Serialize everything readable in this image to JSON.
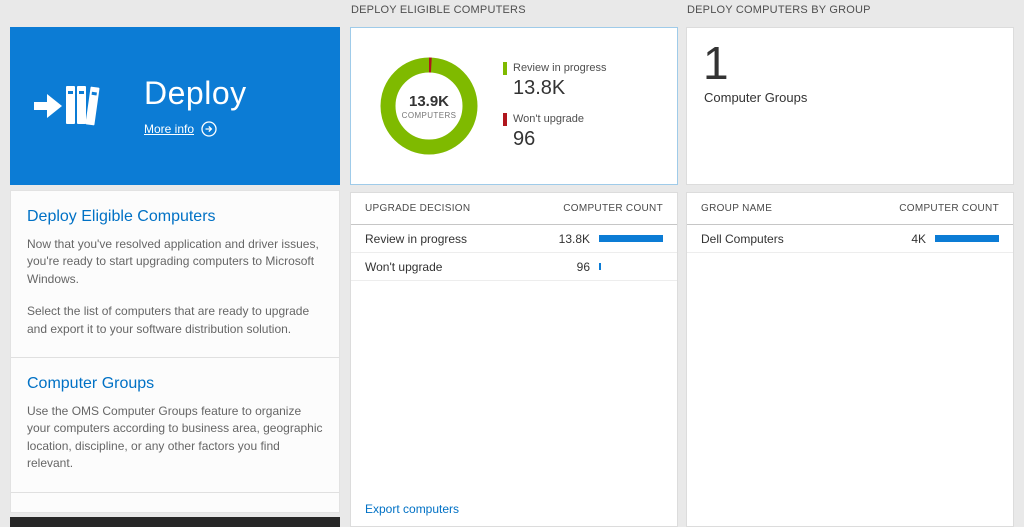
{
  "colors": {
    "tile_blue": "#0c7cd5",
    "accent_blue": "#0071c5",
    "donut_green": "#7fba00",
    "wont_upgrade_red": "#b0161d",
    "bar_blue": "#0c7cd5",
    "background": "#e9e9e9"
  },
  "left": {
    "tile": {
      "title": "Deploy",
      "more_info": "More info",
      "icons": [
        "deploy-icon",
        "arrow-circle-icon"
      ]
    },
    "sections": [
      {
        "heading": "Deploy Eligible Computers",
        "paragraphs": [
          "Now that you've resolved application and driver issues, you're ready to start upgrading computers to Microsoft Windows.",
          "Select the list of computers that are ready to upgrade and export it to your software distribution solution."
        ]
      },
      {
        "heading": "Computer Groups",
        "paragraphs": [
          "Use the OMS Computer Groups feature to organize your computers according to business area, geographic location, discipline, or any other factors you find relevant."
        ]
      }
    ]
  },
  "middle": {
    "header": "DEPLOY ELIGIBLE COMPUTERS",
    "donut": {
      "center_value": "13.9K",
      "center_label": "COMPUTERS",
      "total": 13900,
      "legend": [
        {
          "label": "Review in progress",
          "value": "13.8K",
          "count": 13800,
          "color": "#7fba00"
        },
        {
          "label": "Won't upgrade",
          "value": "96",
          "count": 96,
          "color": "#b0161d"
        }
      ]
    },
    "table": {
      "columns": [
        "UPGRADE DECISION",
        "COMPUTER COUNT"
      ],
      "rows": [
        {
          "label": "Review in progress",
          "value": "13.8K",
          "bar_pct": 100
        },
        {
          "label": "Won't upgrade",
          "value": "96",
          "bar_pct": 3
        }
      ]
    },
    "export_link": "Export computers"
  },
  "right": {
    "header": "DEPLOY COMPUTERS BY GROUP",
    "summary": {
      "value": "1",
      "label": "Computer Groups"
    },
    "table": {
      "columns": [
        "GROUP NAME",
        "COMPUTER COUNT"
      ],
      "rows": [
        {
          "label": "Dell Computers",
          "value": "4K",
          "bar_pct": 100
        }
      ]
    }
  }
}
